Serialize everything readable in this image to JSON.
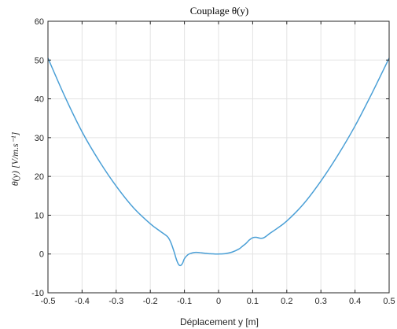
{
  "chart_data": {
    "type": "line",
    "title": "Couplage θ(y)",
    "xlabel": "Déplacement y [m]",
    "ylabel": "θ(y) [V/m.s⁻¹]",
    "xlim": [
      -0.5,
      0.5
    ],
    "ylim": [
      -10,
      60
    ],
    "xticks": [
      -0.5,
      -0.4,
      -0.3,
      -0.2,
      -0.1,
      0,
      0.1,
      0.2,
      0.3,
      0.4,
      0.5
    ],
    "xtick_labels": [
      "-0.5",
      "-0.4",
      "-0.3",
      "-0.2",
      "-0.1",
      "0",
      "0.1",
      "0.2",
      "0.3",
      "0.4",
      "0.5"
    ],
    "yticks": [
      -10,
      0,
      10,
      20,
      30,
      40,
      50,
      60
    ],
    "ytick_labels": [
      "-10",
      "0",
      "10",
      "20",
      "30",
      "40",
      "50",
      "60"
    ],
    "grid": true,
    "colors": {
      "line": "#4a9fd6",
      "grid": "#e3e3e3",
      "axis": "#262626"
    },
    "series": [
      {
        "x": [
          -0.5,
          -0.45,
          -0.4,
          -0.35,
          -0.3,
          -0.25,
          -0.2,
          -0.17,
          -0.15,
          -0.14,
          -0.13,
          -0.125,
          -0.12,
          -0.115,
          -0.11,
          -0.105,
          -0.1,
          -0.09,
          -0.08,
          -0.07,
          -0.06,
          -0.05,
          -0.04,
          -0.03,
          -0.02,
          -0.01,
          0,
          0.02,
          0.04,
          0.06,
          0.07,
          0.08,
          0.09,
          0.1,
          0.11,
          0.12,
          0.13,
          0.14,
          0.15,
          0.17,
          0.2,
          0.25,
          0.3,
          0.35,
          0.4,
          0.45,
          0.5
        ],
        "y": [
          50.5,
          40.5,
          31.5,
          24.0,
          17.5,
          12.0,
          7.8,
          5.8,
          4.5,
          3.0,
          0.5,
          -1.0,
          -2.2,
          -2.9,
          -2.9,
          -2.3,
          -1.2,
          -0.2,
          0.2,
          0.4,
          0.4,
          0.3,
          0.2,
          0.1,
          0.05,
          0.0,
          0.0,
          0.1,
          0.5,
          1.3,
          2.0,
          2.7,
          3.6,
          4.2,
          4.3,
          4.1,
          4.1,
          4.6,
          5.3,
          6.5,
          8.5,
          13.0,
          18.8,
          25.5,
          33.0,
          41.5,
          50.5
        ]
      }
    ]
  }
}
